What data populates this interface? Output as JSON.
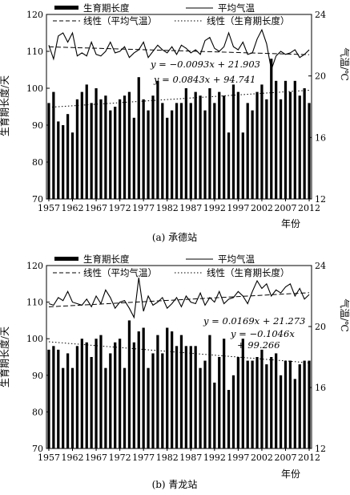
{
  "chart_data": [
    {
      "type": "bar",
      "caption": "(a) 承德站",
      "xlabel": "年份",
      "ylabel_left": "生育期长度/天",
      "ylabel_right": "气温/℃",
      "ylim_left": [
        70,
        120
      ],
      "ylim_right": [
        12,
        24
      ],
      "yticks_left": [
        70,
        80,
        90,
        100,
        110,
        120
      ],
      "yticks_right": [
        12,
        16,
        20,
        24
      ],
      "xticks": [
        1957,
        1962,
        1967,
        1972,
        1977,
        1982,
        1987,
        1992,
        1997,
        2002,
        2007,
        2012
      ],
      "legend": {
        "bar": "生育期长度",
        "line": "平均气温",
        "trend_temp": "线性（平均气温）",
        "trend_growth": "线性（生育期长度）"
      },
      "equations": {
        "temp": "y = −0.0093x + 21.903",
        "growth": "y = 0.0843x + 94.741"
      },
      "trend_temp": {
        "slope": -0.0093,
        "intercept": 21.903
      },
      "trend_growth": {
        "slope": 0.0843,
        "intercept": 94.741
      },
      "years": [
        1957,
        1958,
        1959,
        1960,
        1961,
        1962,
        1963,
        1964,
        1965,
        1966,
        1967,
        1968,
        1969,
        1970,
        1971,
        1972,
        1973,
        1974,
        1975,
        1976,
        1977,
        1978,
        1979,
        1980,
        1981,
        1982,
        1983,
        1984,
        1985,
        1986,
        1987,
        1988,
        1989,
        1990,
        1991,
        1992,
        1993,
        1994,
        1995,
        1996,
        1997,
        1998,
        1999,
        2000,
        2001,
        2002,
        2003,
        2004,
        2005,
        2006,
        2007,
        2008,
        2009,
        2010,
        2011,
        2012
      ],
      "series": [
        {
          "name": "生育期长度",
          "axis": "left",
          "values": [
            96,
            99,
            91,
            90,
            93,
            88,
            97,
            99,
            101,
            96,
            100,
            97,
            98,
            94,
            95,
            97,
            98,
            99,
            92,
            103,
            97,
            94,
            98,
            102,
            96,
            92,
            94,
            96,
            96,
            100,
            96,
            99,
            98,
            94,
            100,
            96,
            99,
            98,
            88,
            101,
            99,
            88,
            96,
            94,
            99,
            101,
            97,
            108,
            102,
            97,
            102,
            99,
            102,
            98,
            100,
            96
          ]
        },
        {
          "name": "平均气温",
          "axis": "right",
          "values": [
            22.0,
            21.1,
            22.6,
            22.8,
            22.2,
            22.8,
            21.3,
            21.5,
            21.3,
            22.2,
            21.4,
            21.3,
            21.6,
            22.2,
            21.5,
            21.6,
            21.9,
            21.2,
            21.5,
            21.7,
            22.2,
            21.2,
            21.6,
            22.0,
            21.7,
            21.5,
            21.9,
            21.4,
            22.0,
            21.8,
            21.5,
            21.7,
            21.4,
            22.3,
            22.5,
            21.8,
            21.6,
            21.9,
            22.8,
            21.9,
            21.7,
            22.2,
            21.4,
            21.5,
            22.4,
            23.0,
            22.1,
            20.4,
            21.3,
            21.6,
            21.4,
            21.5,
            21.7,
            21.2,
            21.4,
            21.7
          ]
        }
      ]
    },
    {
      "type": "bar",
      "caption": "(b) 青龙站",
      "xlabel": "年份",
      "ylabel_left": "生育期长度/天",
      "ylabel_right": "气温/℃",
      "ylim_left": [
        70,
        120
      ],
      "ylim_right": [
        12,
        24
      ],
      "yticks_left": [
        70,
        80,
        90,
        100,
        110,
        120
      ],
      "yticks_right": [
        12,
        16,
        20,
        24
      ],
      "xticks": [
        1957,
        1962,
        1967,
        1972,
        1977,
        1982,
        1987,
        1992,
        1997,
        2002,
        2007,
        2012
      ],
      "legend": {
        "bar": "生育期长度",
        "line": "平均气温",
        "trend_temp": "线性（平均气温）",
        "trend_growth": "线性（生育期长度）"
      },
      "equations": {
        "temp": "y = 0.0169x + 21.273",
        "growth": "y = −0.1046x",
        "growth_cont": "+ 99.266"
      },
      "trend_temp": {
        "slope": 0.0169,
        "intercept": 21.273
      },
      "trend_growth": {
        "slope": -0.1046,
        "intercept": 99.266
      },
      "years": [
        1957,
        1958,
        1959,
        1960,
        1961,
        1962,
        1963,
        1964,
        1965,
        1966,
        1967,
        1968,
        1969,
        1970,
        1971,
        1972,
        1973,
        1974,
        1975,
        1976,
        1977,
        1978,
        1979,
        1980,
        1981,
        1982,
        1983,
        1984,
        1985,
        1986,
        1987,
        1988,
        1989,
        1990,
        1991,
        1992,
        1993,
        1994,
        1995,
        1996,
        1997,
        1998,
        1999,
        2000,
        2001,
        2002,
        2003,
        2004,
        2005,
        2006,
        2007,
        2008,
        2009,
        2010,
        2011,
        2012
      ],
      "series": [
        {
          "name": "生育期长度",
          "axis": "left",
          "values": [
            97,
            98,
            97,
            92,
            96,
            92,
            98,
            100,
            99,
            95,
            100,
            101,
            92,
            96,
            99,
            100,
            92,
            105,
            99,
            102,
            103,
            92,
            96,
            101,
            96,
            103,
            102,
            98,
            101,
            98,
            98,
            98,
            92,
            94,
            101,
            88,
            95,
            100,
            86,
            90,
            95,
            100,
            94,
            94,
            95,
            97,
            93,
            95,
            96,
            90,
            94,
            94,
            89,
            93,
            94,
            94
          ]
        },
        {
          "name": "平均气温",
          "axis": "right",
          "values": [
            21.5,
            21.4,
            21.9,
            21.7,
            22.3,
            21.6,
            21.5,
            21.4,
            21.8,
            21.3,
            22.0,
            21.5,
            22.4,
            21.9,
            21.2,
            21.6,
            21.7,
            21.2,
            20.6,
            23.2,
            21.0,
            22.0,
            21.4,
            21.6,
            21.9,
            21.2,
            21.5,
            21.9,
            21.3,
            22.0,
            21.6,
            21.5,
            22.2,
            21.4,
            21.9,
            21.6,
            22.3,
            21.5,
            21.8,
            21.9,
            22.3,
            22.0,
            21.5,
            22.3,
            23.0,
            22.5,
            22.8,
            22.0,
            22.4,
            22.2,
            22.6,
            22.8,
            22.0,
            22.5,
            21.8,
            22.1
          ]
        }
      ]
    }
  ]
}
